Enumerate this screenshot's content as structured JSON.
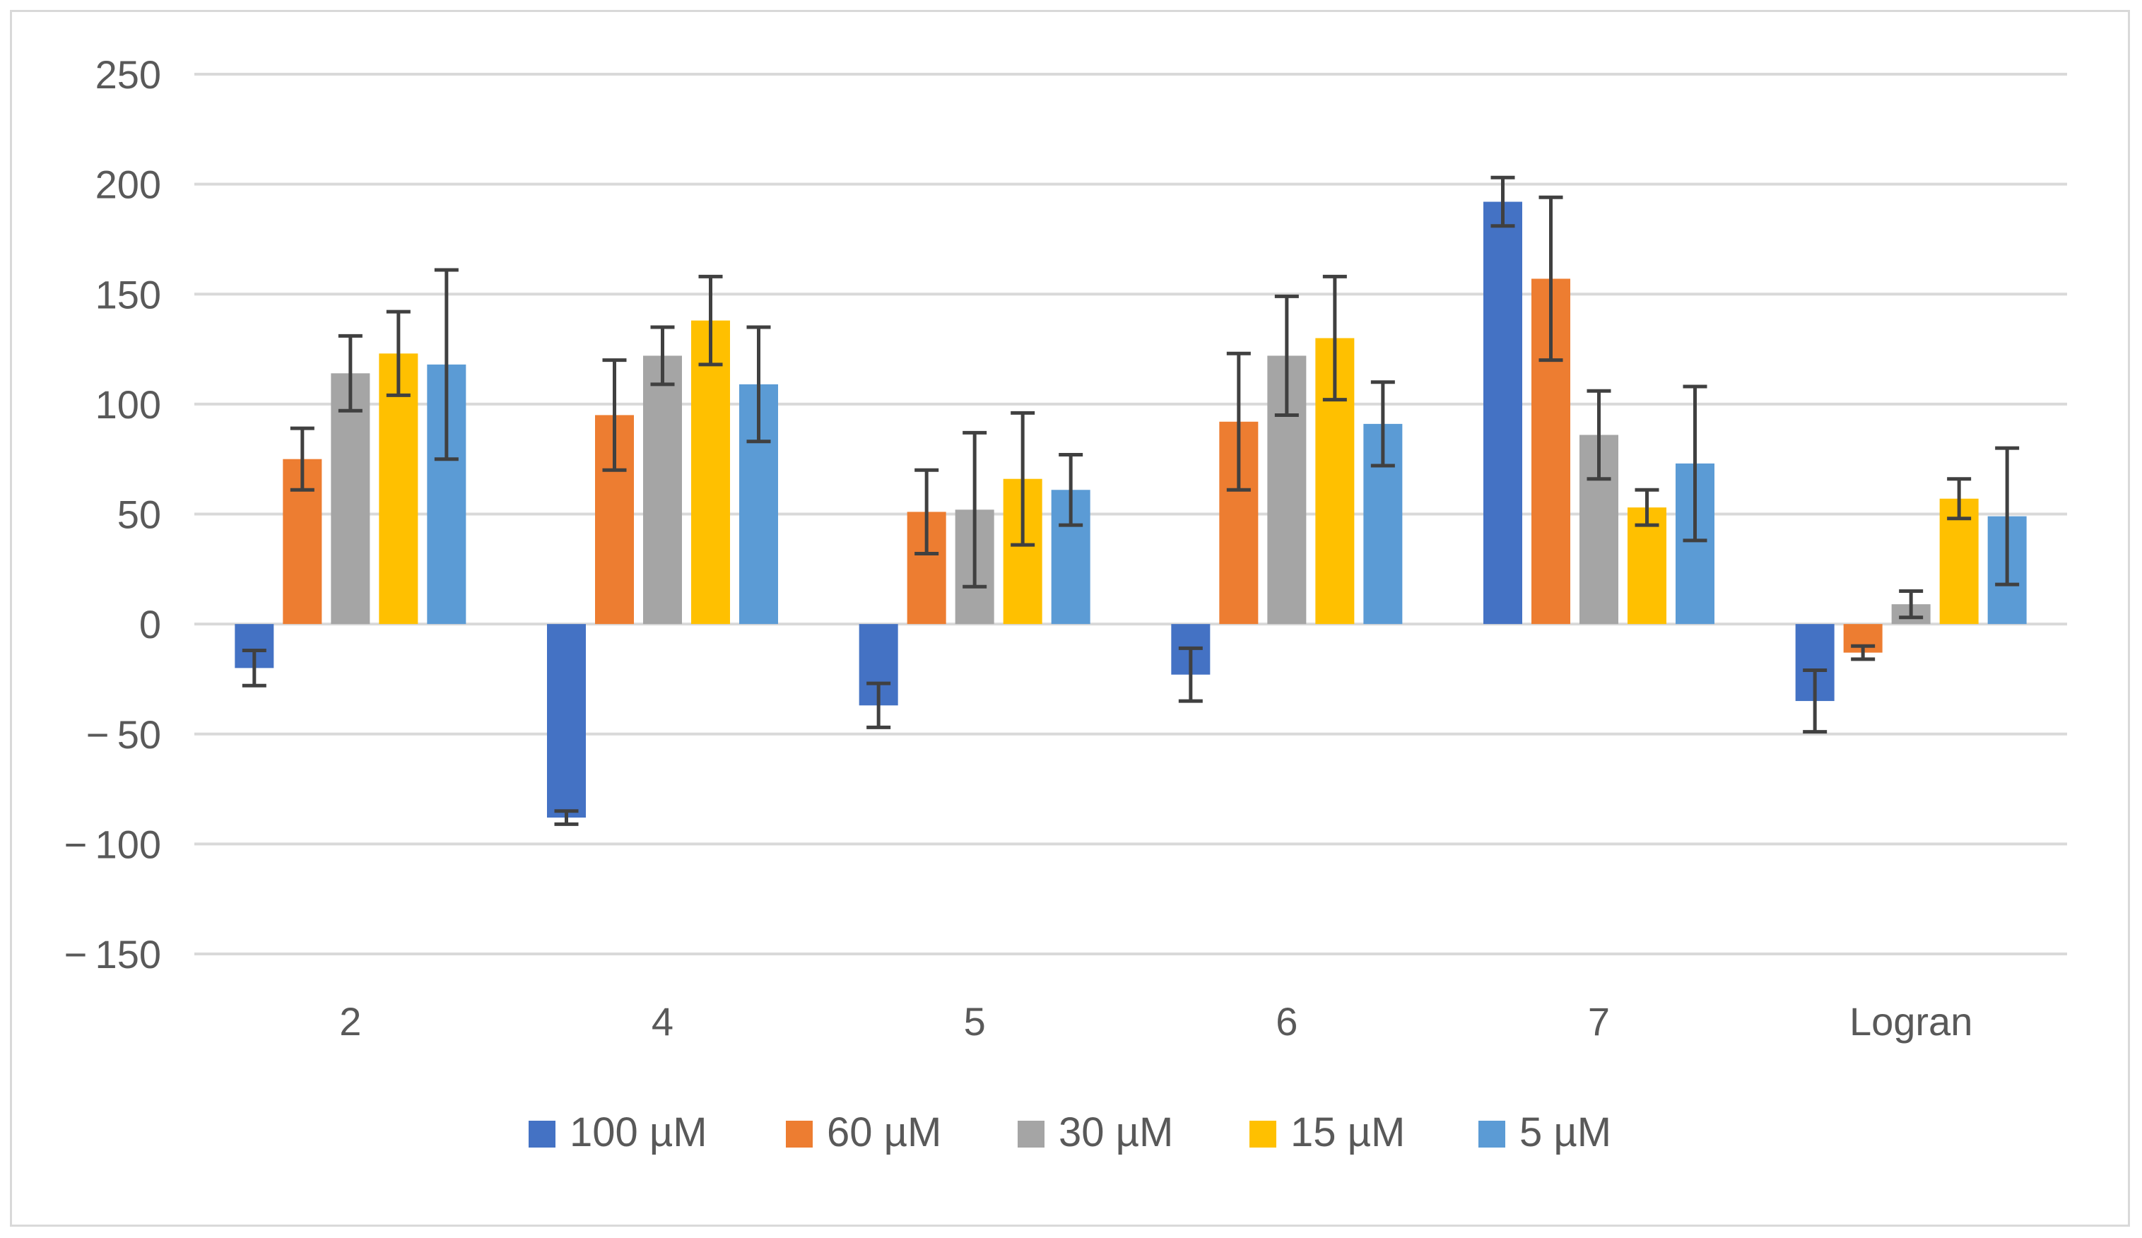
{
  "chart_data": {
    "type": "bar",
    "title": "",
    "xlabel": "",
    "ylabel": "",
    "ylim": [
      -150,
      250
    ],
    "yticks": [
      250,
      200,
      150,
      100,
      50,
      0,
      -50,
      -100,
      -150
    ],
    "ytick_labels": [
      "250",
      "200",
      "150",
      "100",
      "50",
      "0",
      "− 50",
      "− 100",
      "− 150"
    ],
    "grid": true,
    "legend_position": "bottom",
    "categories": [
      "2",
      "4",
      "5",
      "6",
      "7",
      "Logran"
    ],
    "series": [
      {
        "name": "100 µM",
        "color": "#4472c4",
        "values": [
          -20,
          -88,
          -37,
          -23,
          192,
          -35
        ],
        "errors": [
          8,
          3,
          10,
          12,
          11,
          14
        ]
      },
      {
        "name": "60 µM",
        "color": "#ed7d31",
        "values": [
          75,
          95,
          51,
          92,
          157,
          -13
        ],
        "errors": [
          14,
          25,
          19,
          31,
          37,
          3
        ]
      },
      {
        "name": "30 µM",
        "color": "#a5a5a5",
        "values": [
          114,
          122,
          52,
          122,
          86,
          9
        ],
        "errors": [
          17,
          13,
          35,
          27,
          20,
          6
        ]
      },
      {
        "name": "15 µM",
        "color": "#ffc000",
        "values": [
          123,
          138,
          66,
          130,
          53,
          57
        ],
        "errors": [
          19,
          20,
          30,
          28,
          8,
          9
        ]
      },
      {
        "name": "5 µM",
        "color": "#5b9bd5",
        "values": [
          118,
          109,
          61,
          91,
          73,
          49
        ],
        "errors": [
          43,
          26,
          16,
          19,
          35,
          31
        ]
      }
    ]
  }
}
